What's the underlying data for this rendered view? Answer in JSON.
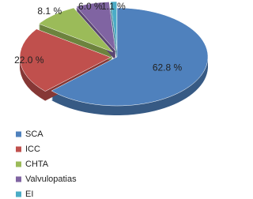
{
  "chart_data": {
    "type": "pie",
    "categories": [
      "SCA",
      "ICC",
      "CHTA",
      "Valvulopatias",
      "EI"
    ],
    "values": [
      62.8,
      22.0,
      8.1,
      6.0,
      1.1
    ],
    "value_labels": [
      "62.8 %",
      "22.0 %",
      "8.1 %",
      "6.0 %",
      "1.1 %"
    ],
    "colors": [
      "#4f81bd",
      "#c0504d",
      "#9bbb59",
      "#8064a2",
      "#4bacc6"
    ],
    "legend": "bottom-left"
  }
}
